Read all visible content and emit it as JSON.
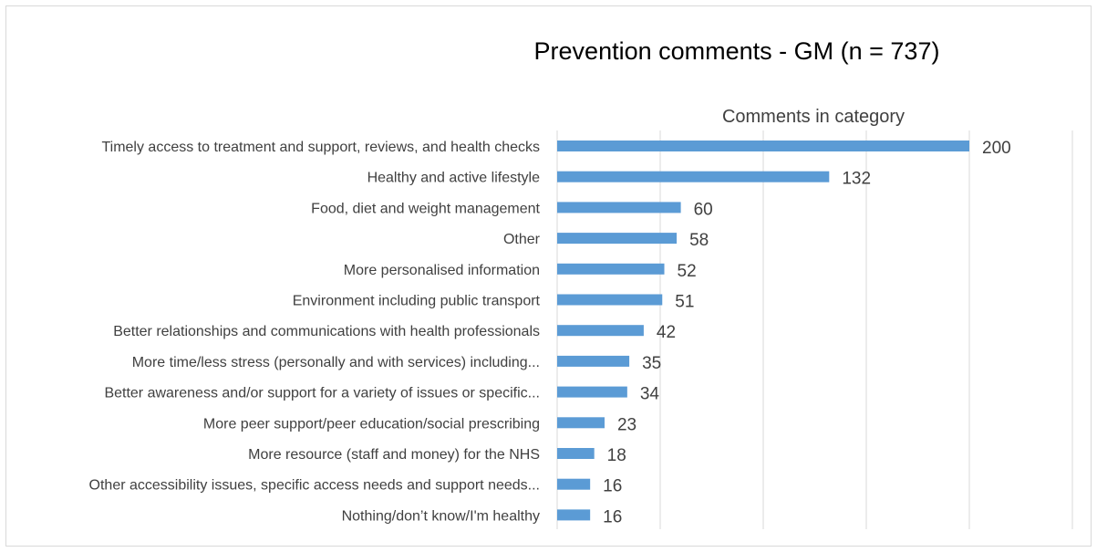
{
  "chart_data": {
    "type": "bar",
    "orientation": "horizontal",
    "title": "Prevention comments - GM (n = 737)",
    "xlabel": "Comments in category",
    "ylabel": "",
    "xlim": [
      0,
      250
    ],
    "gridlines": "vertical",
    "legend": "none",
    "bar_color": "#5b9bd5",
    "grid_color": "#d9d9d9",
    "text_color": "#404040",
    "categories": [
      "Timely access to treatment and support, reviews, and health checks",
      "Healthy and active lifestyle",
      "Food, diet and weight management",
      "Other",
      "More personalised information",
      "Environment including public transport",
      "Better relationships and communications with health professionals",
      "More time/less stress (personally and with services) including...",
      "Better awareness and/or support for a variety of issues or specific...",
      "More peer support/peer education/social prescribing",
      "More resource (staff and money) for the NHS",
      "Other accessibility issues, specific access needs and support needs...",
      "Nothing/don’t know/I'm healthy"
    ],
    "values": [
      200,
      132,
      60,
      58,
      52,
      51,
      42,
      35,
      34,
      23,
      18,
      16,
      16
    ]
  }
}
